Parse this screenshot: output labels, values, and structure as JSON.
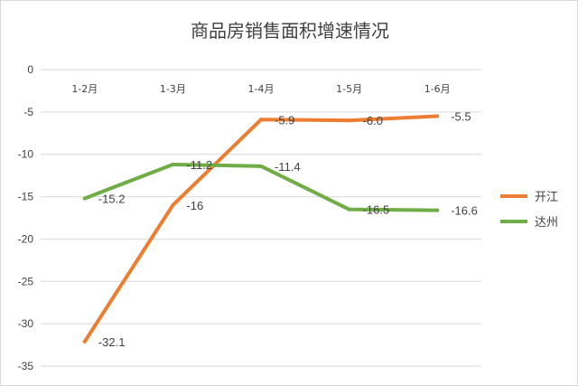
{
  "chart_data": {
    "type": "line",
    "title": "商品房销售面积增速情况",
    "categories": [
      "1-2月",
      "1-3月",
      "1-4月",
      "1-5月",
      "1-6月"
    ],
    "ylim": [
      -35,
      0
    ],
    "yticks": [
      0,
      -5,
      -10,
      -15,
      -20,
      -25,
      -30,
      -35
    ],
    "grid": true,
    "legend_position": "right",
    "series": [
      {
        "name": "开江",
        "color": "#ED7D31",
        "values": [
          -32.1,
          -16,
          -5.9,
          -6.0,
          -5.5
        ],
        "labels": [
          "-32.1",
          "-16",
          "-5.9",
          "-6.0",
          "-5.5"
        ]
      },
      {
        "name": "达州",
        "color": "#70AD47",
        "values": [
          -15.2,
          -11.2,
          -11.4,
          -16.5,
          -16.6
        ],
        "labels": [
          "-15.2",
          "-11.2",
          "-11.4",
          "-16.5",
          "-16.6"
        ]
      }
    ]
  }
}
